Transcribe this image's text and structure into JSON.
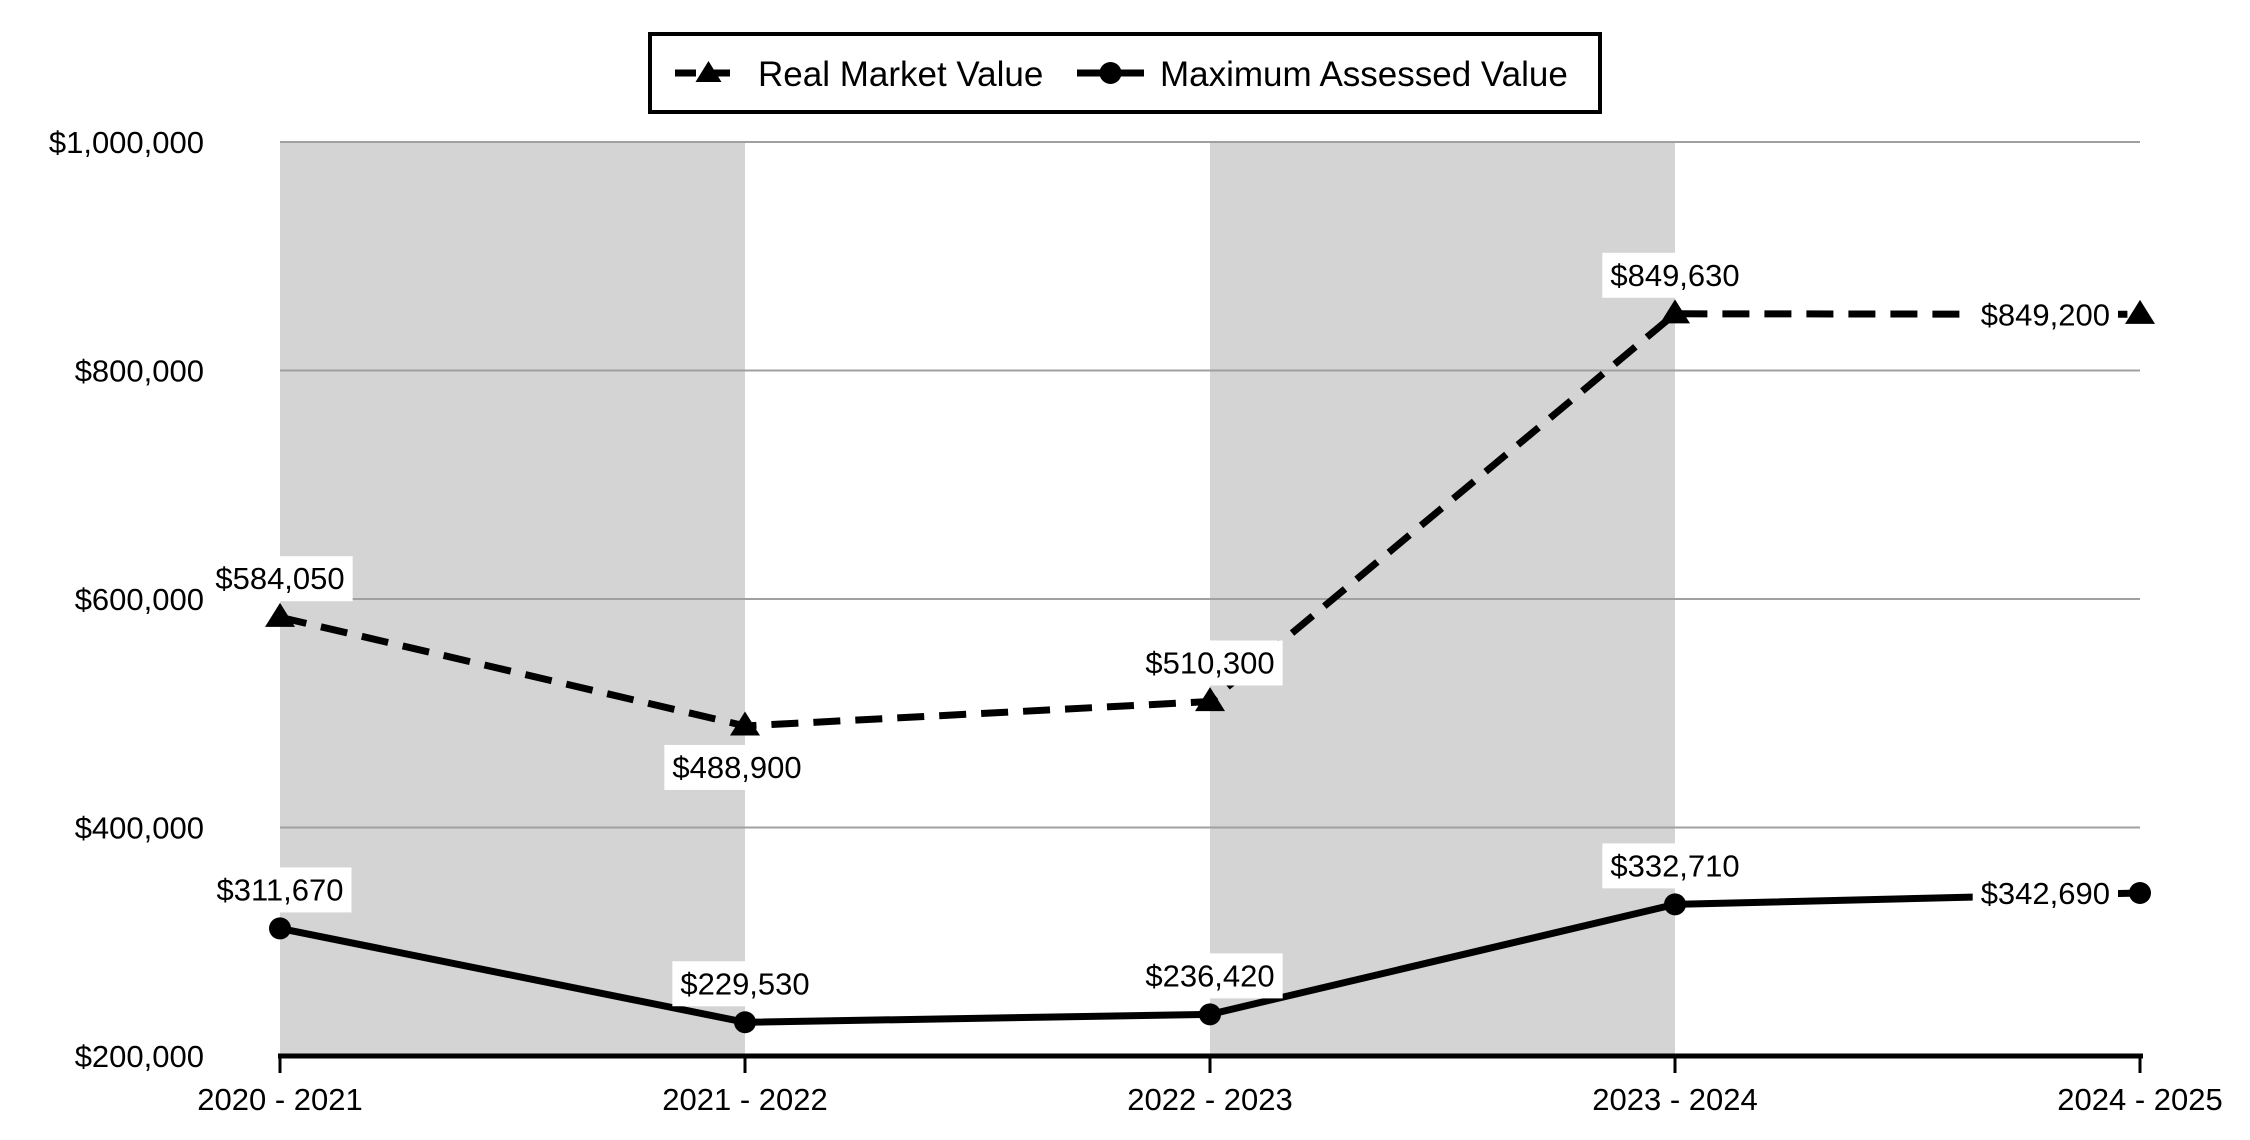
{
  "chart_data": {
    "type": "line",
    "title": "",
    "categories": [
      "2020 - 2021",
      "2021 - 2022",
      "2022 - 2023",
      "2023 - 2024",
      "2024 - 2025"
    ],
    "series": [
      {
        "name": "Real Market Value",
        "line_style": "dashed",
        "marker": "triangle",
        "color": "#000000",
        "values": [
          584050,
          488900,
          510300,
          849630,
          849200
        ],
        "data_labels": [
          "$584,050",
          "$488,900",
          "$510,300",
          "$849,630",
          "$849,200"
        ],
        "label_placement": [
          "above",
          "below",
          "above",
          "above",
          "left"
        ]
      },
      {
        "name": "Maximum Assessed Value",
        "line_style": "solid",
        "marker": "circle",
        "color": "#000000",
        "values": [
          311670,
          229530,
          236420,
          332710,
          342690
        ],
        "data_labels": [
          "$311,670",
          "$229,530",
          "$236,420",
          "$332,710",
          "$342,690"
        ],
        "label_placement": [
          "above",
          "above",
          "above",
          "above",
          "left"
        ]
      }
    ],
    "y_axis": {
      "min": 200000,
      "max": 1000000,
      "step": 200000,
      "tick_values": [
        200000,
        400000,
        600000,
        800000,
        1000000
      ],
      "tick_labels": [
        "$200,000",
        "$400,000",
        "$600,000",
        "$800,000",
        "$1,000,000"
      ]
    },
    "legend": {
      "position": "top",
      "entries": [
        "Real Market Value",
        "Maximum Assessed Value"
      ]
    },
    "shaded_bands": {
      "color": "#D4D4D4",
      "category_ranges": [
        [
          0,
          1
        ],
        [
          2,
          3
        ]
      ]
    },
    "grid": {
      "horizontal": true,
      "color": "#A0A0A0"
    },
    "axis_color": "#000000",
    "label_background": "#FFFFFF"
  }
}
